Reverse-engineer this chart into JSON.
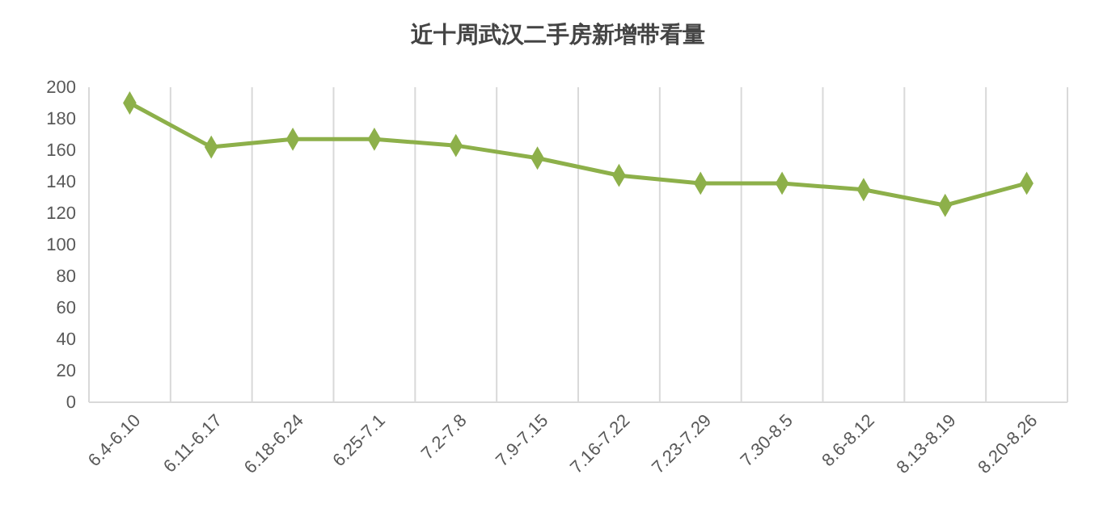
{
  "chart_data": {
    "type": "line",
    "title": "近十周武汉二手房新增带看量",
    "categories": [
      "6.4-6.10",
      "6.11-6.17",
      "6.18-6.24",
      "6.25-7.1",
      "7.2-7.8",
      "7.9-7.15",
      "7.16-7.22",
      "7.23-7.29",
      "7.30-8.5",
      "8.6-8.12",
      "8.13-8.19",
      "8.20-8.26"
    ],
    "series": [
      {
        "color": "#8db04a",
        "values": [
          190,
          162,
          167,
          167,
          163,
          155,
          144,
          139,
          139,
          135,
          125,
          139
        ]
      }
    ],
    "ylim": [
      0,
      200
    ],
    "yticks": [
      0,
      20,
      40,
      60,
      80,
      100,
      120,
      140,
      160,
      180,
      200
    ],
    "grid": "x",
    "marker": "diamond",
    "line_style": "solid"
  }
}
